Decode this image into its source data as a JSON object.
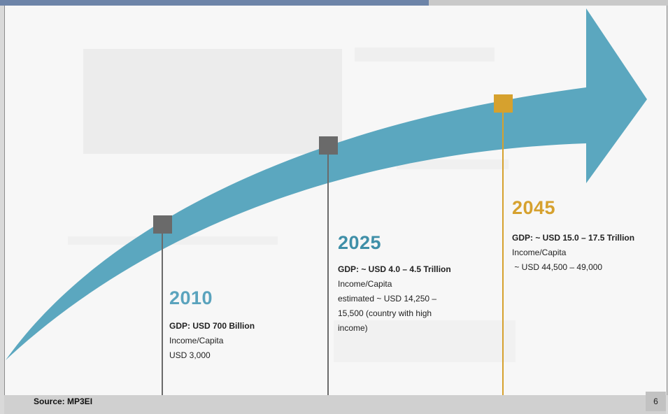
{
  "milestones": [
    {
      "year": "2010",
      "gdp": "GDP: USD 700 Billion",
      "details": [
        "Income/Capita",
        "USD 3,000"
      ],
      "color": "#5aa3bd",
      "marker_color": "#6a6a6a"
    },
    {
      "year": "2025",
      "gdp": "GDP: ~ USD 4.0 – 4.5 Trillion",
      "details": [
        "Income/Capita",
        "estimated ~ USD 14,250 –",
        "15,500 (country with high",
        "income)"
      ],
      "color": "#3f8fa8",
      "marker_color": "#6a6a6a"
    },
    {
      "year": "2045",
      "gdp": "GDP: ~ USD 15.0 – 17.5 Trillion",
      "details": [
        "Income/Capita",
        " ~ USD 44,500 – 49,000"
      ],
      "color": "#d6a12e",
      "marker_color": "#d6a12e"
    }
  ],
  "footer": {
    "source": "Source: MP3EI",
    "page_number": "6"
  },
  "colors": {
    "arrow": "#5ba7bf",
    "top_bar": "#6d84a8"
  }
}
